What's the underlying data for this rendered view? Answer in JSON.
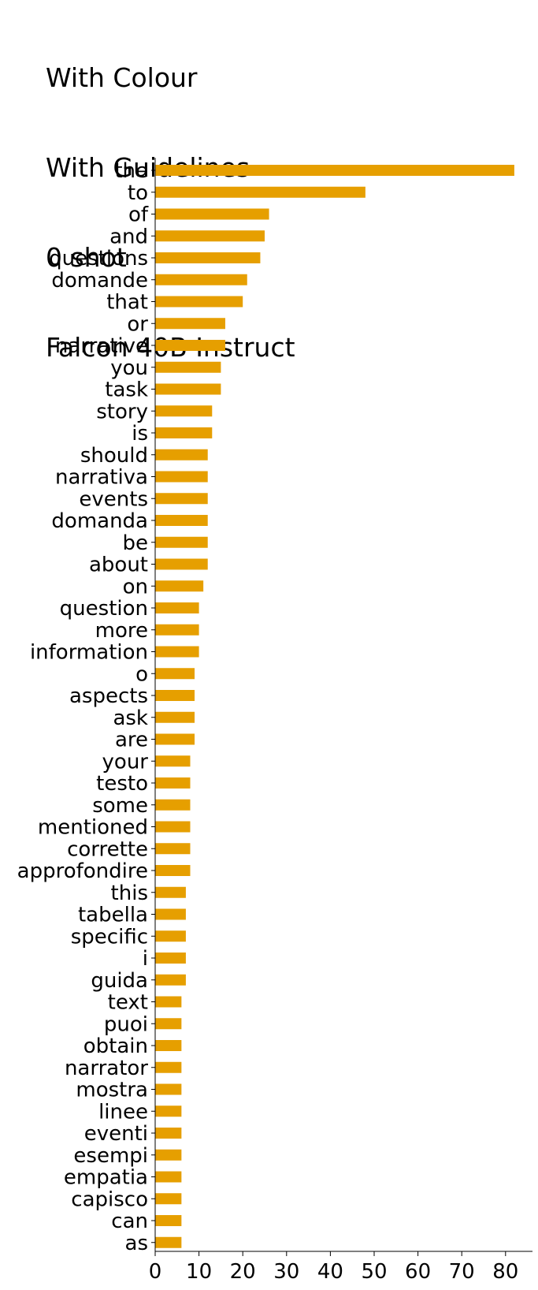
{
  "title_lines": [
    "With Colour",
    "With Guidelines",
    "0 shot",
    "Falcon 40B Instruct"
  ],
  "chart_data": {
    "type": "bar",
    "orientation": "horizontal",
    "title": "With Colour\nWith Guidelines\n0 shot\nFalcon 40B Instruct",
    "xlabel": "",
    "ylabel": "",
    "xlim": [
      0,
      86
    ],
    "xticks": [
      0,
      10,
      20,
      30,
      40,
      50,
      60,
      70,
      80
    ],
    "grid": false,
    "bar_color": "#E69F00",
    "categories": [
      "the",
      "to",
      "of",
      "and",
      "questions",
      "domande",
      "that",
      "or",
      "narrative",
      "you",
      "task",
      "story",
      "is",
      "should",
      "narrativa",
      "events",
      "domanda",
      "be",
      "about",
      "on",
      "question",
      "more",
      "information",
      "o",
      "aspects",
      "ask",
      "are",
      "your",
      "testo",
      "some",
      "mentioned",
      "corrette",
      "approfondire",
      "this",
      "tabella",
      "specific",
      "i",
      "guida",
      "text",
      "puoi",
      "obtain",
      "narrator",
      "mostra",
      "linee",
      "eventi",
      "esempi",
      "empatia",
      "capisco",
      "can",
      "as"
    ],
    "values": [
      82,
      48,
      26,
      25,
      24,
      21,
      20,
      16,
      16,
      15,
      15,
      13,
      13,
      12,
      12,
      12,
      12,
      12,
      12,
      11,
      10,
      10,
      10,
      9,
      9,
      9,
      9,
      8,
      8,
      8,
      8,
      8,
      8,
      7,
      7,
      7,
      7,
      7,
      6,
      6,
      6,
      6,
      6,
      6,
      6,
      6,
      6,
      6,
      6,
      6
    ]
  }
}
